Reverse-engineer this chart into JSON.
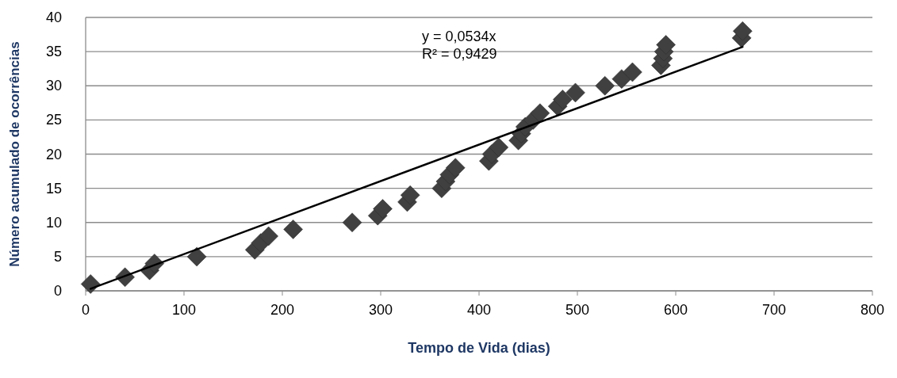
{
  "chart_data": {
    "type": "scatter",
    "xlabel": "Tempo de Vida (dias)",
    "ylabel": "Número acumulado de ocorrências",
    "xlim": [
      0,
      800
    ],
    "xticks": [
      0,
      100,
      200,
      300,
      400,
      500,
      600,
      700,
      800
    ],
    "ylim": [
      0,
      40
    ],
    "yticks": [
      0,
      5,
      10,
      15,
      20,
      25,
      30,
      35,
      40
    ],
    "grid": "y",
    "marker": "diamond",
    "annotations": [
      "y = 0,0534x",
      "R² = 0,9429"
    ],
    "series": [
      {
        "color": "#404040",
        "x": [
          5,
          40,
          65,
          70,
          113,
          172,
          178,
          186,
          211,
          271,
          297,
          302,
          327,
          330,
          362,
          366,
          370,
          376,
          410,
          413,
          420,
          440,
          443,
          447,
          455,
          462,
          480,
          485,
          498,
          528,
          545,
          556,
          585,
          587,
          588,
          590,
          667,
          668
        ],
        "values": [
          1,
          2,
          3,
          4,
          5,
          6,
          7,
          8,
          9,
          10,
          11,
          12,
          13,
          14,
          15,
          16,
          17,
          18,
          19,
          20,
          21,
          22,
          23,
          24,
          25,
          26,
          27,
          28,
          29,
          30,
          31,
          32,
          33,
          34,
          35,
          36,
          37,
          38
        ]
      },
      {
        "type": "line",
        "marker": "none",
        "color": "#000000",
        "x": [
          5,
          668
        ],
        "values": [
          0.3,
          35.7
        ]
      }
    ]
  }
}
